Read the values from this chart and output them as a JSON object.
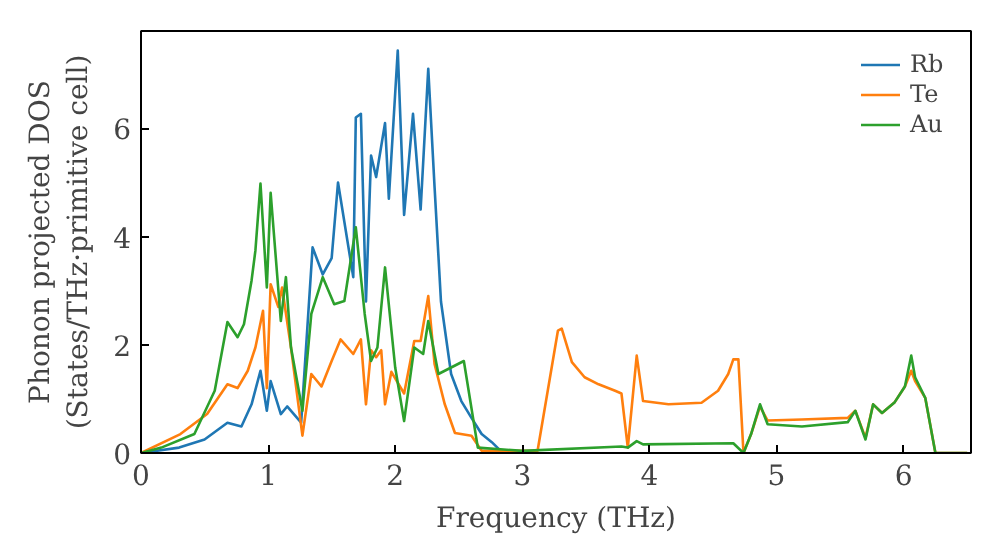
{
  "chart_data": {
    "type": "line",
    "xlabel": "Frequency (THz)",
    "ylabel": "Phonon projected DOS\n(States/THz·primitive cell)",
    "xlim": [
      0,
      6.53
    ],
    "ylim": [
      0,
      7.8
    ],
    "xticks": [
      0,
      1,
      2,
      3,
      4,
      5,
      6
    ],
    "yticks": [
      0,
      2,
      4,
      6
    ],
    "grid": false,
    "legend": "top right",
    "series": [
      {
        "name": "Rb",
        "color": "#1f77b4",
        "x": [
          0,
          0.3,
          0.5,
          0.68,
          0.79,
          0.87,
          0.94,
          0.99,
          1.02,
          1.1,
          1.15,
          1.26,
          1.35,
          1.43,
          1.5,
          1.55,
          1.67,
          1.69,
          1.73,
          1.77,
          1.81,
          1.85,
          1.92,
          1.95,
          2.02,
          2.07,
          2.14,
          2.2,
          2.26,
          2.31,
          2.36,
          2.44,
          2.52,
          2.6,
          2.68,
          2.76,
          2.83,
          3.0
        ],
        "values": [
          0,
          0.1,
          0.25,
          0.56,
          0.49,
          0.9,
          1.52,
          0.78,
          1.33,
          0.72,
          0.86,
          0.56,
          3.8,
          3.3,
          3.6,
          5.0,
          3.25,
          6.2,
          6.27,
          2.8,
          5.5,
          5.1,
          6.1,
          4.7,
          7.44,
          4.4,
          6.27,
          4.5,
          7.1,
          4.9,
          2.8,
          1.46,
          0.96,
          0.65,
          0.35,
          0.2,
          0.04,
          0
        ]
      },
      {
        "name": "Te",
        "color": "#ff7f0e",
        "x": [
          0,
          0.31,
          0.52,
          0.68,
          0.76,
          0.84,
          0.9,
          0.96,
          0.99,
          1.02,
          1.08,
          1.11,
          1.18,
          1.27,
          1.34,
          1.42,
          1.5,
          1.57,
          1.67,
          1.73,
          1.77,
          1.81,
          1.85,
          1.89,
          1.92,
          1.97,
          2.07,
          2.15,
          2.2,
          2.26,
          2.31,
          2.39,
          2.47,
          2.6,
          2.68,
          3.12,
          3.2,
          3.28,
          3.31,
          3.39,
          3.49,
          3.6,
          3.73,
          3.78,
          3.83,
          3.9,
          3.95,
          4.15,
          4.41,
          4.54,
          4.62,
          4.66,
          4.7,
          4.74,
          4.8,
          4.87,
          4.93,
          5.2,
          5.56,
          5.62,
          5.7,
          5.76,
          5.83,
          5.93,
          6.01,
          6.06,
          6.09,
          6.17,
          6.25,
          6.5
        ],
        "values": [
          0,
          0.35,
          0.72,
          1.27,
          1.2,
          1.52,
          1.95,
          2.63,
          1.2,
          3.12,
          2.7,
          3.06,
          1.95,
          0.32,
          1.46,
          1.23,
          1.7,
          2.1,
          1.83,
          2.1,
          0.9,
          1.9,
          1.77,
          1.9,
          0.9,
          1.5,
          1.1,
          2.07,
          2.07,
          2.9,
          1.64,
          0.9,
          0.37,
          0.32,
          0.04,
          0.04,
          1.15,
          2.26,
          2.3,
          1.68,
          1.4,
          1.27,
          1.15,
          1.1,
          0.1,
          1.8,
          0.96,
          0.9,
          0.93,
          1.15,
          1.46,
          1.73,
          1.73,
          0,
          0.35,
          0.86,
          0.6,
          0.62,
          0.65,
          0.78,
          0.28,
          0.9,
          0.74,
          0.94,
          1.23,
          1.52,
          1.33,
          1.02,
          0,
          0
        ]
      },
      {
        "name": "Au",
        "color": "#2ca02c",
        "x": [
          0,
          0.16,
          0.42,
          0.58,
          0.68,
          0.76,
          0.81,
          0.87,
          0.9,
          0.94,
          0.99,
          1.02,
          1.1,
          1.14,
          1.18,
          1.27,
          1.34,
          1.43,
          1.52,
          1.6,
          1.69,
          1.76,
          1.81,
          1.86,
          1.92,
          2.0,
          2.07,
          2.15,
          2.22,
          2.26,
          2.34,
          2.44,
          2.54,
          2.65,
          3.0,
          3.78,
          3.83,
          3.9,
          3.95,
          4.66,
          4.74,
          4.8,
          4.87,
          4.93,
          5.2,
          5.56,
          5.62,
          5.7,
          5.76,
          5.83,
          5.93,
          6.01,
          6.06,
          6.09,
          6.17,
          6.25,
          6.5
        ],
        "values": [
          0,
          0.1,
          0.35,
          1.15,
          2.42,
          2.14,
          2.38,
          3.19,
          3.74,
          4.98,
          3.06,
          4.81,
          2.44,
          3.25,
          1.95,
          0.78,
          2.57,
          3.25,
          2.75,
          2.81,
          4.17,
          2.57,
          1.7,
          1.95,
          3.43,
          1.58,
          0.59,
          1.95,
          1.83,
          2.44,
          1.46,
          1.58,
          1.7,
          0.1,
          0.04,
          0.12,
          0.1,
          0.22,
          0.16,
          0.18,
          0,
          0.35,
          0.9,
          0.53,
          0.49,
          0.57,
          0.78,
          0.25,
          0.9,
          0.74,
          0.94,
          1.23,
          1.8,
          1.4,
          1.02,
          0,
          0
        ]
      }
    ]
  }
}
